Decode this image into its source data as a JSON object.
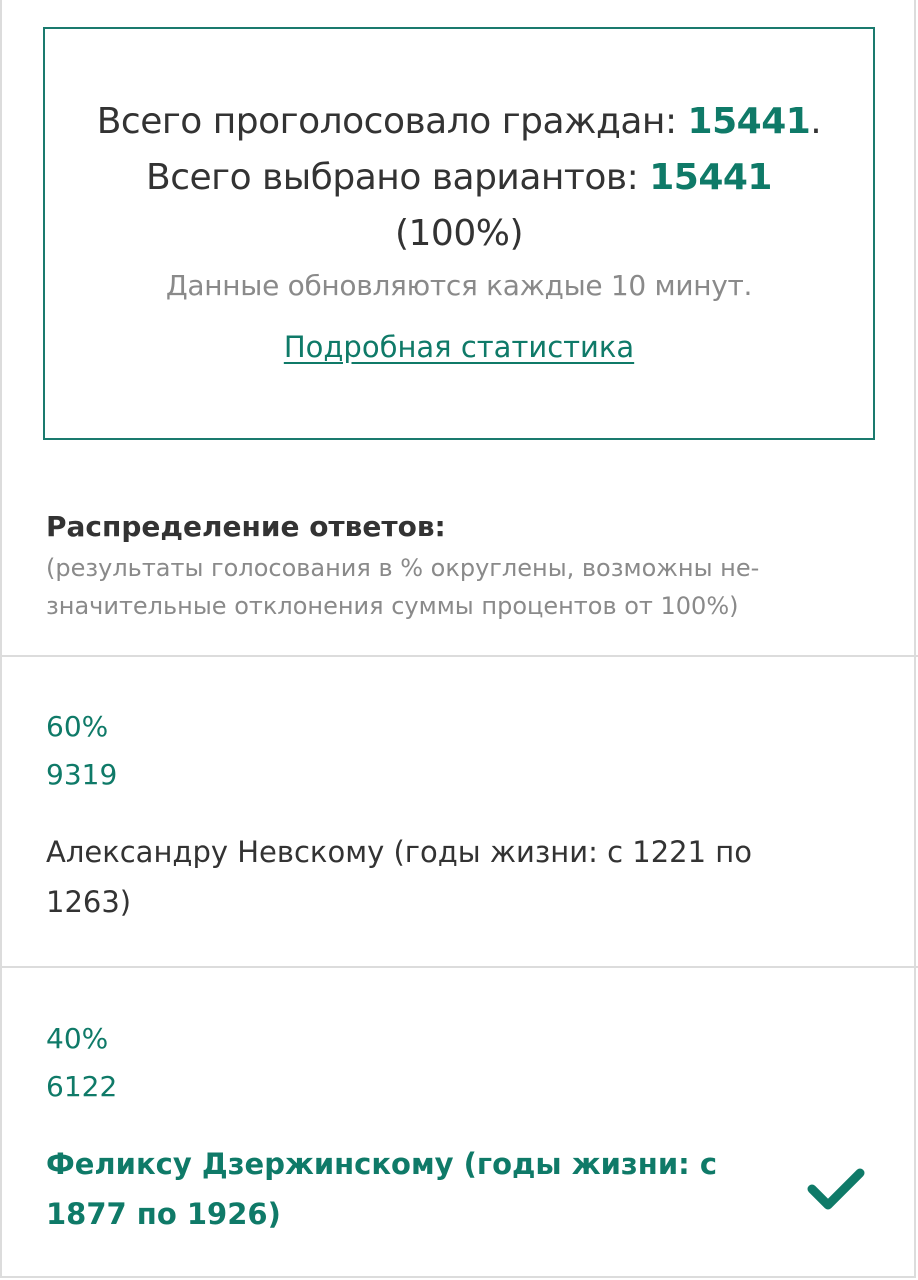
{
  "summary": {
    "voted_label": "Всего проголосовало граждан:",
    "voted_count": "15441",
    "selected_label": ". Всего выбрано вариантов:",
    "selected_count": "15441",
    "selected_percent": " (100%)",
    "update_note": "Данные обновляются каждые 10 минут.",
    "stats_link": "Подробная статистика"
  },
  "distribution": {
    "title": "Распределение ответов:",
    "note": "(результаты голосования в % округлены, возможны не-значительные отклонения суммы процентов от 100%)"
  },
  "options": [
    {
      "percent": "60%",
      "count": "9319",
      "name": "Александру Невскому (годы жизни: с 1221 по 1263)",
      "selected": false
    },
    {
      "percent": "40%",
      "count": "6122",
      "name": "Феликсу Дзержинскому (годы жизни: с 1877 по 1926)",
      "selected": true
    }
  ],
  "colors": {
    "accent": "#0f7a68",
    "muted": "#8a8a8a",
    "border": "#dcdcdc"
  },
  "icons": {
    "selected": "checkmark-icon"
  }
}
